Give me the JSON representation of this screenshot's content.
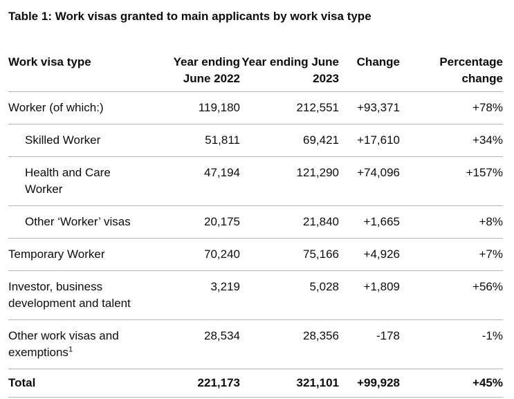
{
  "title": "Table 1: Work visas granted to main applicants by work visa type",
  "colors": {
    "text": "#0b0c0c",
    "border": "#b1b4b6",
    "background": "#ffffff"
  },
  "table": {
    "columns": [
      {
        "key": "visa-type",
        "label": "Work visa type",
        "align": "left"
      },
      {
        "key": "ye-2022",
        "label": "Year ending June 2022",
        "align": "right"
      },
      {
        "key": "ye-2023",
        "label": "Year ending June 2023",
        "align": "right"
      },
      {
        "key": "change",
        "label": "Change",
        "align": "right"
      },
      {
        "key": "pct-change",
        "label": "Percentage change",
        "align": "right"
      }
    ],
    "rows": [
      {
        "label": "Worker (of which:)",
        "indent": false,
        "bold": false,
        "footnote": "",
        "values": [
          "119,180",
          "212,551",
          "+93,371",
          "+78%"
        ]
      },
      {
        "label": "Skilled Worker",
        "indent": true,
        "bold": false,
        "footnote": "",
        "values": [
          "51,811",
          "69,421",
          "+17,610",
          "+34%"
        ]
      },
      {
        "label": "Health and Care Worker",
        "indent": true,
        "bold": false,
        "footnote": "",
        "values": [
          "47,194",
          "121,290",
          "+74,096",
          "+157%"
        ]
      },
      {
        "label": "Other ‘Worker’ visas",
        "indent": true,
        "bold": false,
        "footnote": "",
        "values": [
          "20,175",
          "21,840",
          "+1,665",
          "+8%"
        ]
      },
      {
        "label": "Temporary Worker",
        "indent": false,
        "bold": false,
        "footnote": "",
        "values": [
          "70,240",
          "75,166",
          "+4,926",
          "+7%"
        ]
      },
      {
        "label": "Investor, business development and talent",
        "indent": false,
        "bold": false,
        "footnote": "",
        "values": [
          "3,219",
          "5,028",
          "+1,809",
          "+56%"
        ]
      },
      {
        "label": "Other work visas and exemptions",
        "indent": false,
        "bold": false,
        "footnote": "1",
        "values": [
          "28,534",
          "28,356",
          "-178",
          "-1%"
        ]
      },
      {
        "label": "Total",
        "indent": false,
        "bold": true,
        "footnote": "",
        "values": [
          "221,173",
          "321,101",
          "+99,928",
          "+45%"
        ]
      }
    ]
  }
}
